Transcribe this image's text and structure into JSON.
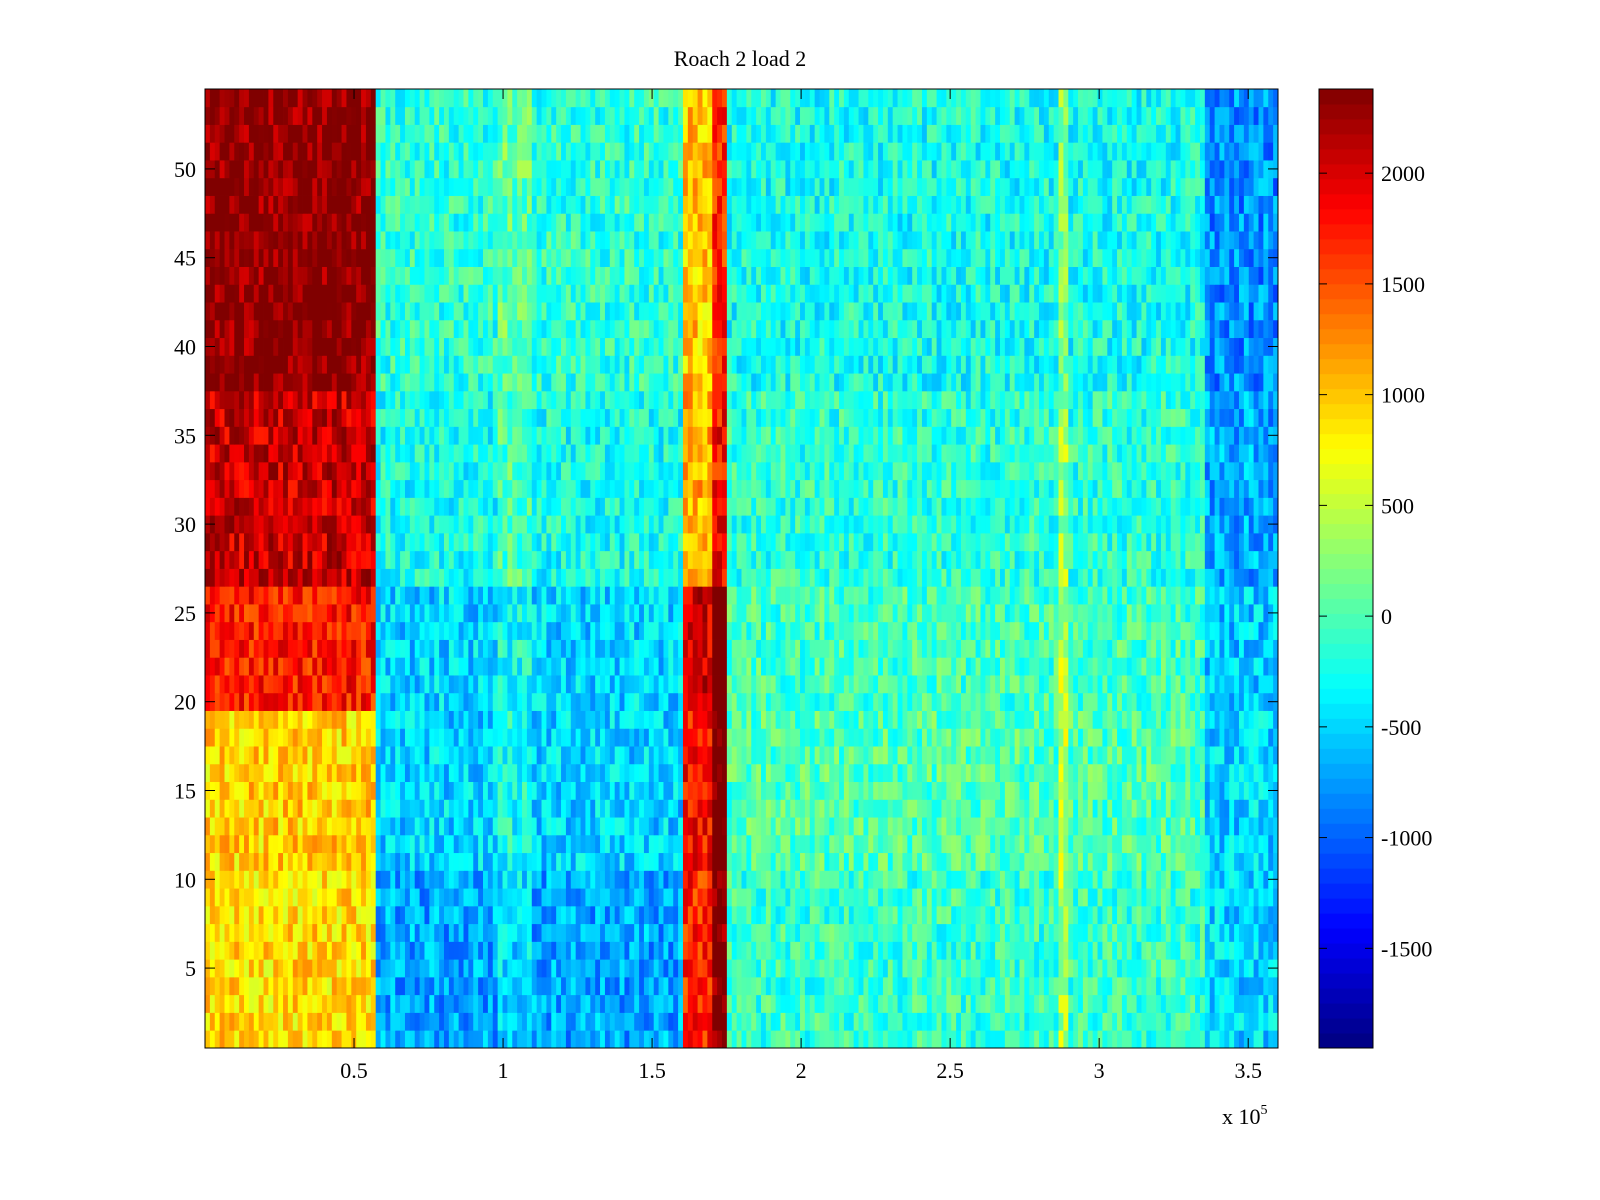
{
  "chart_data": {
    "type": "heatmap",
    "title": "Roach 2 load 2",
    "xlabel": "",
    "ylabel": "",
    "x_exponent_label": "x 10",
    "x_exponent_power": "5",
    "xlim": [
      0,
      360000
    ],
    "ylim": [
      0.5,
      54.5
    ],
    "rows": 54,
    "x_ticks": [
      50000,
      100000,
      150000,
      200000,
      250000,
      300000,
      350000
    ],
    "x_tick_labels": [
      "0.5",
      "1",
      "1.5",
      "2",
      "2.5",
      "3",
      "3.5"
    ],
    "y_ticks": [
      5,
      10,
      15,
      20,
      25,
      30,
      35,
      40,
      45,
      50
    ],
    "y_tick_labels": [
      "5",
      "10",
      "15",
      "20",
      "25",
      "30",
      "35",
      "40",
      "45",
      "50"
    ],
    "colorbar": {
      "clim": [
        -1950,
        2380
      ],
      "ticks": [
        -1500,
        -1000,
        -500,
        0,
        500,
        1000,
        1500,
        2000
      ],
      "tick_labels": [
        "-1500",
        "-1000",
        "-500",
        "0",
        "500",
        "1000",
        "1500",
        "2000"
      ],
      "colormap": "jet"
    },
    "x_segments": [
      {
        "x": [
          0,
          57000
        ],
        "description_values": "high"
      },
      {
        "x": [
          57000,
          165000
        ],
        "description_values": "mid"
      },
      {
        "x": [
          165000,
          175000
        ],
        "description_values": "band"
      },
      {
        "x": [
          175000,
          360000
        ],
        "description_values": "mid"
      }
    ],
    "row_profiles": {
      "rows_1_10": {
        "left": 900,
        "middle_left": -700,
        "band": 1700,
        "middle_right": -100,
        "right_edge": -500
      },
      "rows_11_19": {
        "left": 950,
        "middle_left": -500,
        "band": 1800,
        "middle_right": 0,
        "right_edge": -500
      },
      "rows_20_26": {
        "left": 1750,
        "middle_left": -500,
        "band": 2000,
        "middle_right": -50,
        "right_edge": -550
      },
      "rows_27_37": {
        "left": 2050,
        "middle_left": -250,
        "band": 1100,
        "middle_right": -150,
        "right_edge": -700
      },
      "rows_38_54": {
        "left": 2350,
        "middle_left": -150,
        "band": 1000,
        "middle_right": -250,
        "right_edge": -800
      }
    },
    "grid": false,
    "legend": "colorbar-right"
  }
}
